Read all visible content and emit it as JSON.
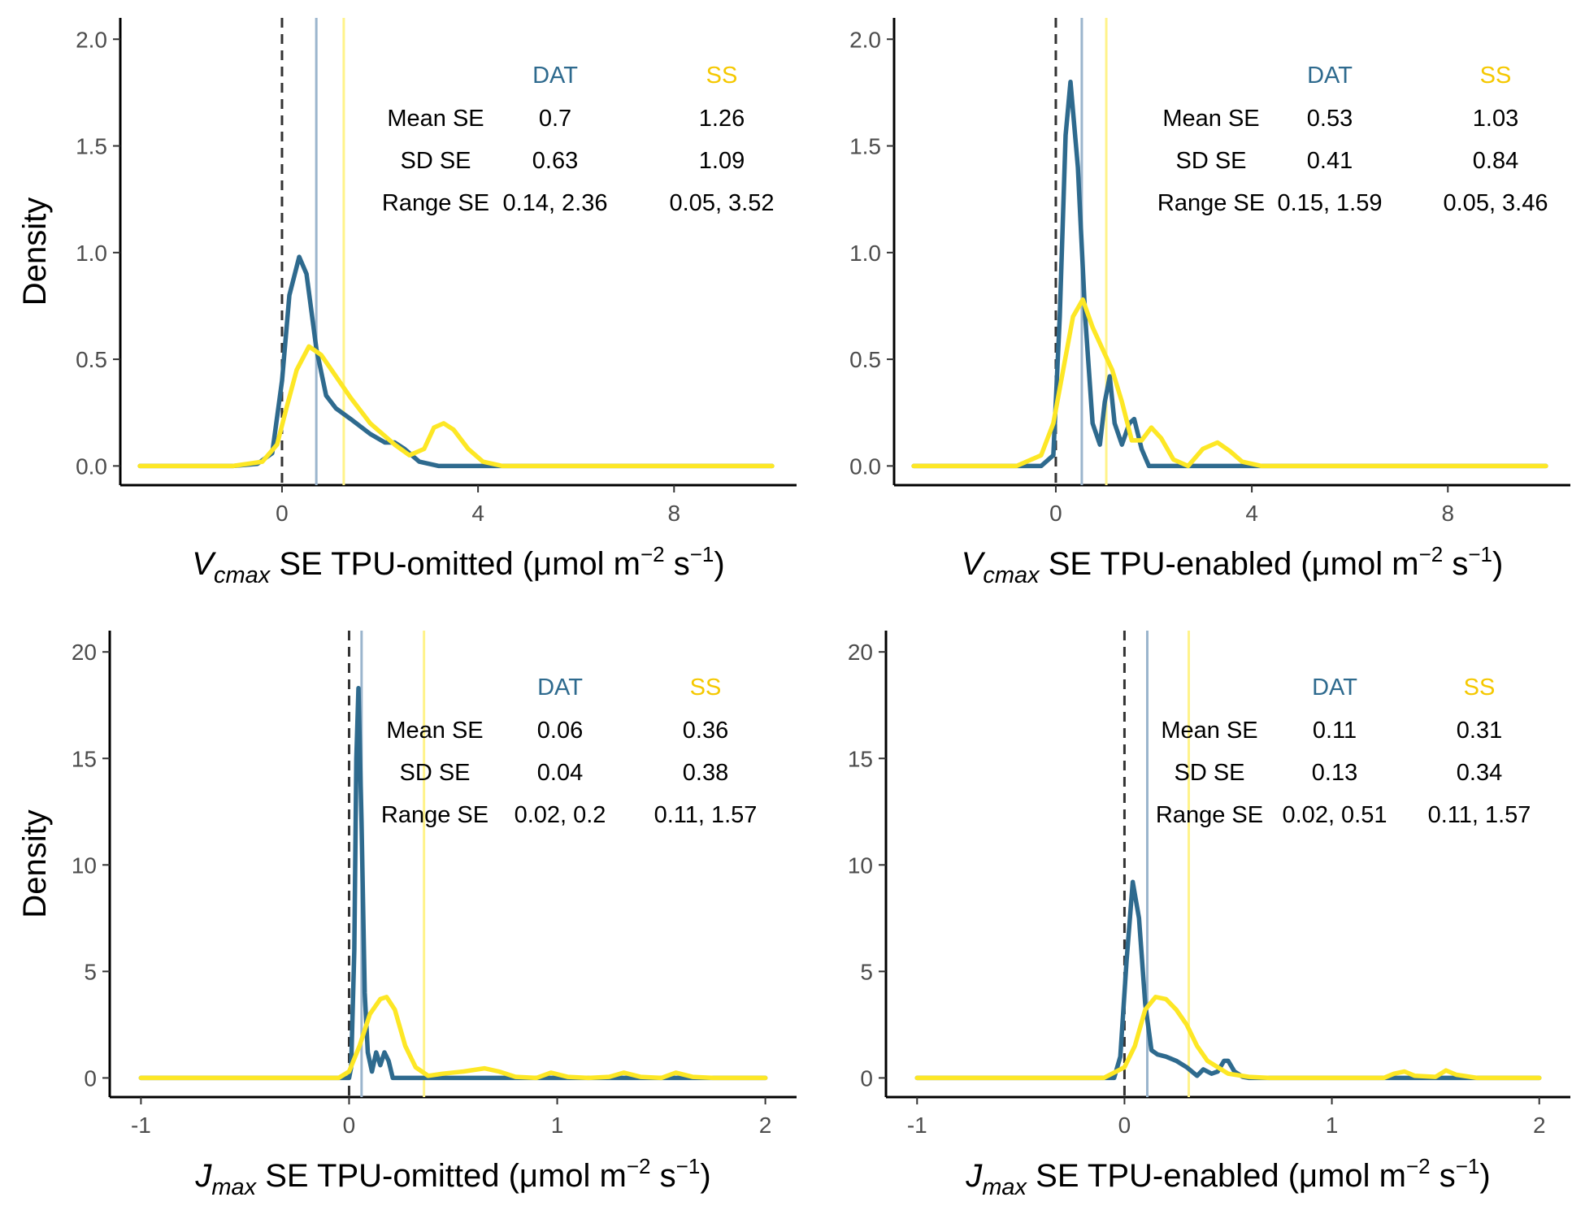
{
  "colors": {
    "dat": "#2e6a8e",
    "ss": "#fde725",
    "dat_mean": "#9bb5cd",
    "ss_mean": "#fff38a",
    "zero_line": "#333333"
  },
  "labels": {
    "density": "Density"
  },
  "chart_data": [
    {
      "type": "line",
      "xlabel": {
        "symbol": "V",
        "subscript": "cmax",
        "text": " SE TPU-omitted (μmol m",
        "sup1": "−2",
        "mid": " s",
        "sup2": "−1",
        "end": ")"
      },
      "ylabel": "Density",
      "xlim": [
        -3.3,
        10.5
      ],
      "ylim": [
        -0.09,
        2.1
      ],
      "xticks": [
        0,
        4,
        8
      ],
      "xtick_labels": [
        "0",
        "4",
        "8"
      ],
      "yticks": [
        0,
        0.5,
        1,
        1.5,
        2
      ],
      "ytick_labels": [
        "0.0",
        "0.5",
        "1.0",
        "1.5",
        "2.0"
      ],
      "zero_line": 0,
      "mean_lines": {
        "DAT": 0.7,
        "SS": 1.26
      },
      "series": [
        {
          "name": "DAT",
          "x": [
            -2.9,
            -1,
            -0.5,
            -0.2,
            0,
            0.15,
            0.35,
            0.5,
            0.7,
            0.9,
            1.1,
            1.4,
            1.8,
            2.1,
            2.3,
            2.5,
            2.8,
            3.2,
            10
          ],
          "y": [
            0,
            0,
            0.01,
            0.06,
            0.4,
            0.8,
            0.98,
            0.9,
            0.55,
            0.33,
            0.27,
            0.22,
            0.15,
            0.11,
            0.11,
            0.08,
            0.02,
            0,
            0
          ]
        },
        {
          "name": "SS",
          "x": [
            -2.9,
            -1,
            -0.4,
            -0.1,
            0.1,
            0.3,
            0.55,
            0.8,
            1.1,
            1.4,
            1.8,
            2.3,
            2.6,
            2.9,
            3.1,
            3.3,
            3.5,
            3.8,
            4.1,
            4.5,
            10
          ],
          "y": [
            0,
            0,
            0.02,
            0.1,
            0.28,
            0.45,
            0.56,
            0.52,
            0.42,
            0.32,
            0.2,
            0.1,
            0.05,
            0.08,
            0.18,
            0.2,
            0.17,
            0.08,
            0.02,
            0,
            0
          ]
        }
      ],
      "table": {
        "columns": [
          "DAT",
          "SS"
        ],
        "rows": [
          {
            "label": "Mean SE",
            "dat": "0.7",
            "ss": "1.26"
          },
          {
            "label": "SD SE",
            "dat": "0.63",
            "ss": "1.09"
          },
          {
            "label": "Range SE",
            "dat": "0.14, 2.36",
            "ss": "0.05, 3.52"
          }
        ]
      }
    },
    {
      "type": "line",
      "xlabel": {
        "symbol": "V",
        "subscript": "cmax",
        "text": " SE TPU-enabled (μmol m",
        "sup1": "−2",
        "mid": " s",
        "sup2": "−1",
        "end": ")"
      },
      "ylabel": "",
      "xlim": [
        -3.3,
        10.5
      ],
      "ylim": [
        -0.09,
        2.1
      ],
      "xticks": [
        0,
        4,
        8
      ],
      "xtick_labels": [
        "0",
        "4",
        "8"
      ],
      "yticks": [
        0,
        0.5,
        1,
        1.5,
        2
      ],
      "ytick_labels": [
        "0.0",
        "0.5",
        "1.0",
        "1.5",
        "2.0"
      ],
      "zero_line": 0,
      "mean_lines": {
        "DAT": 0.53,
        "SS": 1.03
      },
      "series": [
        {
          "name": "DAT",
          "x": [
            -2.9,
            -0.3,
            -0.05,
            0.08,
            0.2,
            0.3,
            0.45,
            0.6,
            0.75,
            0.9,
            1.0,
            1.1,
            1.2,
            1.35,
            1.5,
            1.6,
            1.75,
            1.9,
            10
          ],
          "y": [
            0,
            0,
            0.05,
            0.7,
            1.55,
            1.8,
            1.4,
            0.7,
            0.2,
            0.1,
            0.3,
            0.42,
            0.2,
            0.1,
            0.2,
            0.22,
            0.08,
            0,
            0
          ]
        },
        {
          "name": "SS",
          "x": [
            -2.9,
            -0.8,
            -0.3,
            -0.05,
            0.15,
            0.35,
            0.55,
            0.75,
            0.95,
            1.15,
            1.35,
            1.55,
            1.75,
            1.95,
            2.15,
            2.4,
            2.7,
            3.0,
            3.3,
            3.55,
            3.8,
            4.2,
            10
          ],
          "y": [
            0,
            0,
            0.05,
            0.2,
            0.45,
            0.7,
            0.78,
            0.65,
            0.55,
            0.45,
            0.3,
            0.12,
            0.12,
            0.18,
            0.13,
            0.03,
            0,
            0.08,
            0.11,
            0.07,
            0.02,
            0,
            0
          ]
        }
      ],
      "table": {
        "columns": [
          "DAT",
          "SS"
        ],
        "rows": [
          {
            "label": "Mean SE",
            "dat": "0.53",
            "ss": "1.03"
          },
          {
            "label": "SD SE",
            "dat": "0.41",
            "ss": "0.84"
          },
          {
            "label": "Range SE",
            "dat": "0.15, 1.59",
            "ss": "0.05, 3.46"
          }
        ]
      }
    },
    {
      "type": "line",
      "xlabel": {
        "symbol": "J",
        "subscript": "max",
        "text": " SE TPU-omitted (μmol m",
        "sup1": "−2",
        "mid": " s",
        "sup2": "−1",
        "end": ")"
      },
      "ylabel": "Density",
      "xlim": [
        -1.15,
        2.15
      ],
      "ylim": [
        -0.9,
        21
      ],
      "xticks": [
        -1,
        0,
        1,
        2
      ],
      "xtick_labels": [
        "-1",
        "0",
        "1",
        "2"
      ],
      "yticks": [
        0,
        5,
        10,
        15,
        20
      ],
      "ytick_labels": [
        "0",
        "5",
        "10",
        "15",
        "20"
      ],
      "zero_line": 0,
      "mean_lines": {
        "DAT": 0.06,
        "SS": 0.36
      },
      "series": [
        {
          "name": "DAT",
          "x": [
            -1,
            0,
            0.01,
            0.025,
            0.035,
            0.045,
            0.06,
            0.075,
            0.09,
            0.11,
            0.13,
            0.15,
            0.17,
            0.19,
            0.21,
            0.25,
            2
          ],
          "y": [
            0,
            0,
            0.5,
            6,
            15,
            18.3,
            12,
            4,
            1.2,
            0.3,
            1.2,
            0.6,
            1.2,
            0.8,
            0,
            0,
            0
          ]
        },
        {
          "name": "SS",
          "x": [
            -1,
            -0.05,
            0,
            0.05,
            0.1,
            0.15,
            0.18,
            0.22,
            0.27,
            0.32,
            0.38,
            0.45,
            0.55,
            0.65,
            0.72,
            0.8,
            0.9,
            0.97,
            1.05,
            1.15,
            1.25,
            1.32,
            1.4,
            1.5,
            1.57,
            1.65,
            1.75,
            2
          ],
          "y": [
            0,
            0,
            0.3,
            1.5,
            3,
            3.7,
            3.8,
            3.2,
            1.5,
            0.5,
            0.1,
            0.2,
            0.3,
            0.45,
            0.3,
            0.05,
            0,
            0.25,
            0.05,
            0,
            0.05,
            0.25,
            0.05,
            0,
            0.25,
            0.05,
            0,
            0
          ]
        }
      ],
      "table": {
        "columns": [
          "DAT",
          "SS"
        ],
        "rows": [
          {
            "label": "Mean SE",
            "dat": "0.06",
            "ss": "0.36"
          },
          {
            "label": "SD SE",
            "dat": "0.04",
            "ss": "0.38"
          },
          {
            "label": "Range SE",
            "dat": "0.02, 0.2",
            "ss": "0.11, 1.57"
          }
        ]
      }
    },
    {
      "type": "line",
      "xlabel": {
        "symbol": "J",
        "subscript": "max",
        "text": " SE TPU-enabled (μmol m",
        "sup1": "−2",
        "mid": " s",
        "sup2": "−1",
        "end": ")"
      },
      "ylabel": "",
      "xlim": [
        -1.15,
        2.15
      ],
      "ylim": [
        -0.9,
        21
      ],
      "xticks": [
        -1,
        0,
        1,
        2
      ],
      "xtick_labels": [
        "-1",
        "0",
        "1",
        "2"
      ],
      "yticks": [
        0,
        5,
        10,
        15,
        20
      ],
      "ytick_labels": [
        "0",
        "5",
        "10",
        "15",
        "20"
      ],
      "zero_line": 0,
      "mean_lines": {
        "DAT": 0.11,
        "SS": 0.31
      },
      "series": [
        {
          "name": "DAT",
          "x": [
            -1,
            -0.05,
            -0.02,
            0.01,
            0.04,
            0.07,
            0.1,
            0.13,
            0.16,
            0.2,
            0.25,
            0.3,
            0.35,
            0.38,
            0.42,
            0.45,
            0.48,
            0.5,
            0.53,
            0.57,
            0.6,
            2
          ],
          "y": [
            0,
            0,
            1,
            5.5,
            9.2,
            7.5,
            3.5,
            1.3,
            1.1,
            1.0,
            0.8,
            0.5,
            0.1,
            0.4,
            0.2,
            0.3,
            0.8,
            0.8,
            0.3,
            0.05,
            0,
            0
          ]
        },
        {
          "name": "SS",
          "x": [
            -1,
            -0.1,
            0,
            0.05,
            0.1,
            0.15,
            0.2,
            0.25,
            0.3,
            0.35,
            0.4,
            0.5,
            0.6,
            0.7,
            1.25,
            1.3,
            1.35,
            1.4,
            1.5,
            1.55,
            1.6,
            1.7,
            2
          ],
          "y": [
            0,
            0,
            0.5,
            1.5,
            3.2,
            3.8,
            3.7,
            3.2,
            2.5,
            1.5,
            0.8,
            0.2,
            0.05,
            0,
            0,
            0.2,
            0.3,
            0.1,
            0.05,
            0.35,
            0.15,
            0,
            0
          ]
        }
      ],
      "table": {
        "columns": [
          "DAT",
          "SS"
        ],
        "rows": [
          {
            "label": "Mean SE",
            "dat": "0.11",
            "ss": "0.31"
          },
          {
            "label": "SD SE",
            "dat": "0.13",
            "ss": "0.34"
          },
          {
            "label": "Range SE",
            "dat": "0.02, 0.51",
            "ss": "0.11, 1.57"
          }
        ]
      }
    }
  ]
}
